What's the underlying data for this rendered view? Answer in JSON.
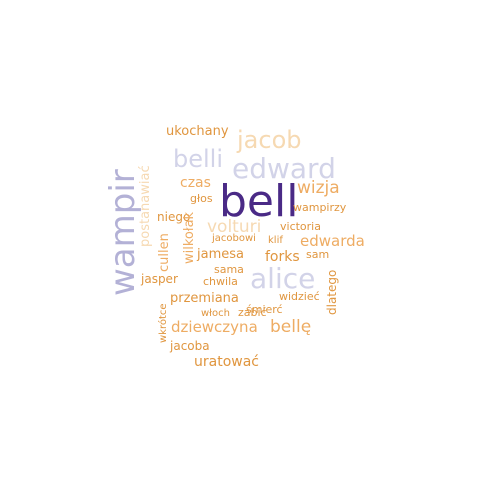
{
  "colors": {
    "purple_dark": "#4a2a86",
    "purple_light": "#b3b1d6",
    "lavender": "#d2d3e8",
    "peach": "#f6d9b2",
    "orange": "#eeac63",
    "orange_dark": "#e0963f"
  },
  "words": [
    {
      "text": "bell"
    },
    {
      "text": "wampir"
    },
    {
      "text": "alice"
    },
    {
      "text": "edward"
    },
    {
      "text": "jacob"
    },
    {
      "text": "belli"
    },
    {
      "text": "wizja"
    },
    {
      "text": "volturi"
    },
    {
      "text": "edwarda"
    },
    {
      "text": "bellę"
    },
    {
      "text": "dziewczyna"
    },
    {
      "text": "przemiana"
    },
    {
      "text": "ukochany"
    },
    {
      "text": "postanawiać"
    },
    {
      "text": "czas"
    },
    {
      "text": "głos"
    },
    {
      "text": "niego"
    },
    {
      "text": "wampirzy"
    },
    {
      "text": "victoria"
    },
    {
      "text": "klif"
    },
    {
      "text": "jacobowi"
    },
    {
      "text": "cullen"
    },
    {
      "text": "wilkołak"
    },
    {
      "text": "jamesa"
    },
    {
      "text": "forks"
    },
    {
      "text": "sam"
    },
    {
      "text": "sama"
    },
    {
      "text": "chwila"
    },
    {
      "text": "jasper"
    },
    {
      "text": "dlatego"
    },
    {
      "text": "widzieć"
    },
    {
      "text": "śmierć"
    },
    {
      "text": "włoch"
    },
    {
      "text": "zabić"
    },
    {
      "text": "wkrótce"
    },
    {
      "text": "jacoba"
    },
    {
      "text": "uratować"
    }
  ]
}
